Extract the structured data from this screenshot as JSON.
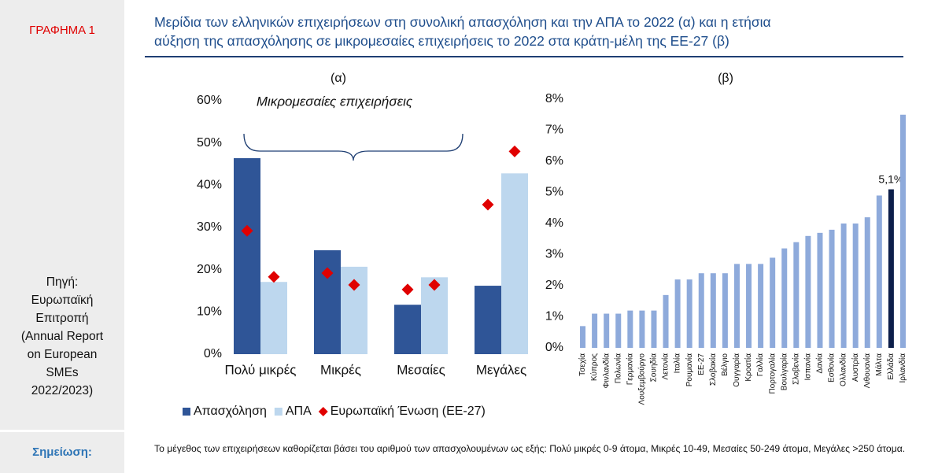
{
  "label": "ΓΡΑΦΗΜΑ 1",
  "title": [
    "Μερίδια των ελληνικών επιχειρήσεων στη συνολική  απασχόληση και την ΑΠΑ το 2022 (α) και η ετήσια",
    "αύξηση της απασχόλησης σε μικρομεσαίες επιχειρήσεις το 2022 στα κράτη-μέλη της ΕΕ-27 (β)"
  ],
  "source": "Πηγή: Ευρωπαϊκή Επιτροπή (Annual Report on European SMEs 2022/2023)",
  "note_label": "Σημείωση:",
  "note": "Το μέγεθος των επιχειρήσεων καθορίζεται βάσει του αριθμού των απασχολουμένων ως εξής: Πολύ μικρές 0-9 άτομα, Μικρές 10-49, Μεσαίες 50-249 άτομα, Μεγάλες >250 άτομα.",
  "chart_data": [
    {
      "type": "bar",
      "title": "(α)",
      "annotation": "Μικρομεσαίες επιχειρήσεις",
      "categories": [
        "Πολύ μικρές",
        "Μικρές",
        "Μεσαίες",
        "Μεγάλες"
      ],
      "series": [
        {
          "name": "Απασχόληση",
          "color": "#2f5597",
          "values": [
            46.4,
            24.6,
            11.7,
            16.2
          ]
        },
        {
          "name": "ΑΠΑ",
          "color": "#bdd7ee",
          "values": [
            17.1,
            20.7,
            18.2,
            42.8
          ]
        },
        {
          "name": "Ευρωπαϊκή Ένωση (ΕΕ-27)",
          "color": "#e00000",
          "marker": "diamond",
          "values": [
            [
              29.2,
              18.3
            ],
            [
              19.2,
              16.4
            ],
            [
              15.3,
              16.4
            ],
            [
              35.4,
              48.0
            ]
          ]
        }
      ],
      "ylim": [
        0,
        60
      ],
      "yticks": [
        {
          "value": 0,
          "label": "0%"
        },
        {
          "value": 10,
          "label": "10%"
        },
        {
          "value": 20,
          "label": "20%"
        },
        {
          "value": 30,
          "label": "30%"
        },
        {
          "value": 40,
          "label": "40%"
        },
        {
          "value": 50,
          "label": "50%"
        },
        {
          "value": 60,
          "label": "60%"
        }
      ]
    },
    {
      "type": "bar",
      "title": "(β)",
      "categories": [
        "Τσεχία",
        "Κύπρος",
        "Φινλανδία",
        "Πολωνία",
        "Γερμανία",
        "Λουξεμβούργο",
        "Σουηδία",
        "Λετονία",
        "Ιταλία",
        "Ρουμανία",
        "ΕΕ-27",
        "Σλοβακία",
        "Βέλγιο",
        "Ουγγαρία",
        "Κροατία",
        "Γαλλία",
        "Πορτογαλία",
        "Βουλγαρία",
        "Σλοβενία",
        "Ισπανία",
        "Δανία",
        "Εσθονία",
        "Ολλανδία",
        "Αυστρία",
        "Λιθουανία",
        "Μάλτα",
        "Ελλάδα",
        "Ιρλανδία"
      ],
      "values": [
        0.7,
        1.1,
        1.1,
        1.1,
        1.2,
        1.2,
        1.2,
        1.7,
        2.2,
        2.2,
        2.4,
        2.4,
        2.4,
        2.7,
        2.7,
        2.7,
        2.9,
        3.2,
        3.4,
        3.6,
        3.7,
        3.8,
        4.0,
        4.0,
        4.2,
        4.9,
        5.1,
        7.5
      ],
      "value_labels": [
        null,
        null,
        null,
        null,
        null,
        null,
        null,
        null,
        null,
        null,
        null,
        null,
        null,
        null,
        null,
        null,
        null,
        null,
        null,
        null,
        null,
        null,
        null,
        null,
        null,
        null,
        "5,1%",
        null
      ],
      "colors": [
        "#8eaadb",
        "#8eaadb",
        "#8eaadb",
        "#8eaadb",
        "#8eaadb",
        "#8eaadb",
        "#8eaadb",
        "#8eaadb",
        "#8eaadb",
        "#8eaadb",
        "#8eaadb",
        "#8eaadb",
        "#8eaadb",
        "#8eaadb",
        "#8eaadb",
        "#8eaadb",
        "#8eaadb",
        "#8eaadb",
        "#8eaadb",
        "#8eaadb",
        "#8eaadb",
        "#8eaadb",
        "#8eaadb",
        "#8eaadb",
        "#8eaadb",
        "#8eaadb",
        "#0d1f4a",
        "#8eaadb"
      ],
      "ylim": [
        0,
        8
      ],
      "yticks": [
        {
          "value": 0,
          "label": "0%"
        },
        {
          "value": 1,
          "label": "1%"
        },
        {
          "value": 2,
          "label": "2%"
        },
        {
          "value": 3,
          "label": "3%"
        },
        {
          "value": 4,
          "label": "4%"
        },
        {
          "value": 5,
          "label": "5%"
        },
        {
          "value": 6,
          "label": "6%"
        },
        {
          "value": 7,
          "label": "7%"
        },
        {
          "value": 8,
          "label": "8%"
        }
      ]
    }
  ]
}
